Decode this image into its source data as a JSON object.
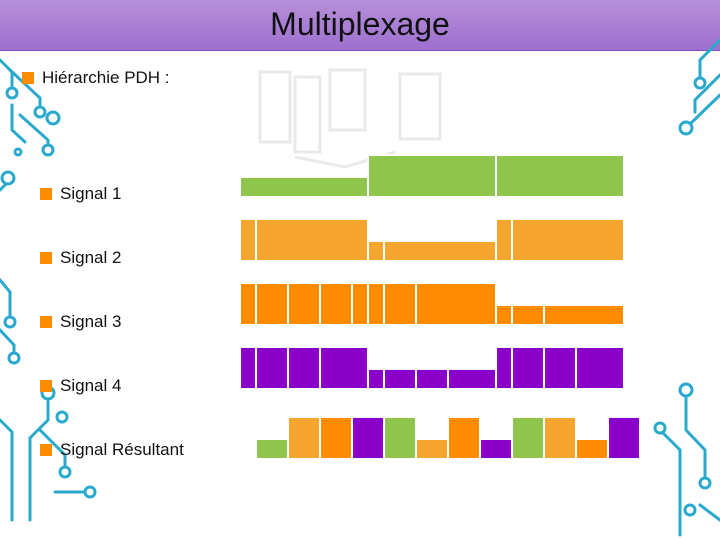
{
  "title": "Multiplexage",
  "main_bullet": "Hiérarchie PDH :",
  "signals": [
    {
      "label": "Signal 1",
      "color": "#8fc54a"
    },
    {
      "label": "Signal 2",
      "color": "#f5a42e"
    },
    {
      "label": "Signal 3",
      "color": "#ff8c00"
    },
    {
      "label": "Signal 4",
      "color": "#8a00c8"
    },
    {
      "label": "Signal Résultant",
      "color": "multi"
    }
  ],
  "colors": {
    "title_bar": "#a97bd4",
    "bullet": "#ff8c00",
    "circuit": "#2aa9cf",
    "signal1": "#8fc54a",
    "signal2": "#f5a42e",
    "signal3": "#ff8c00",
    "signal4": "#8a00c8"
  }
}
